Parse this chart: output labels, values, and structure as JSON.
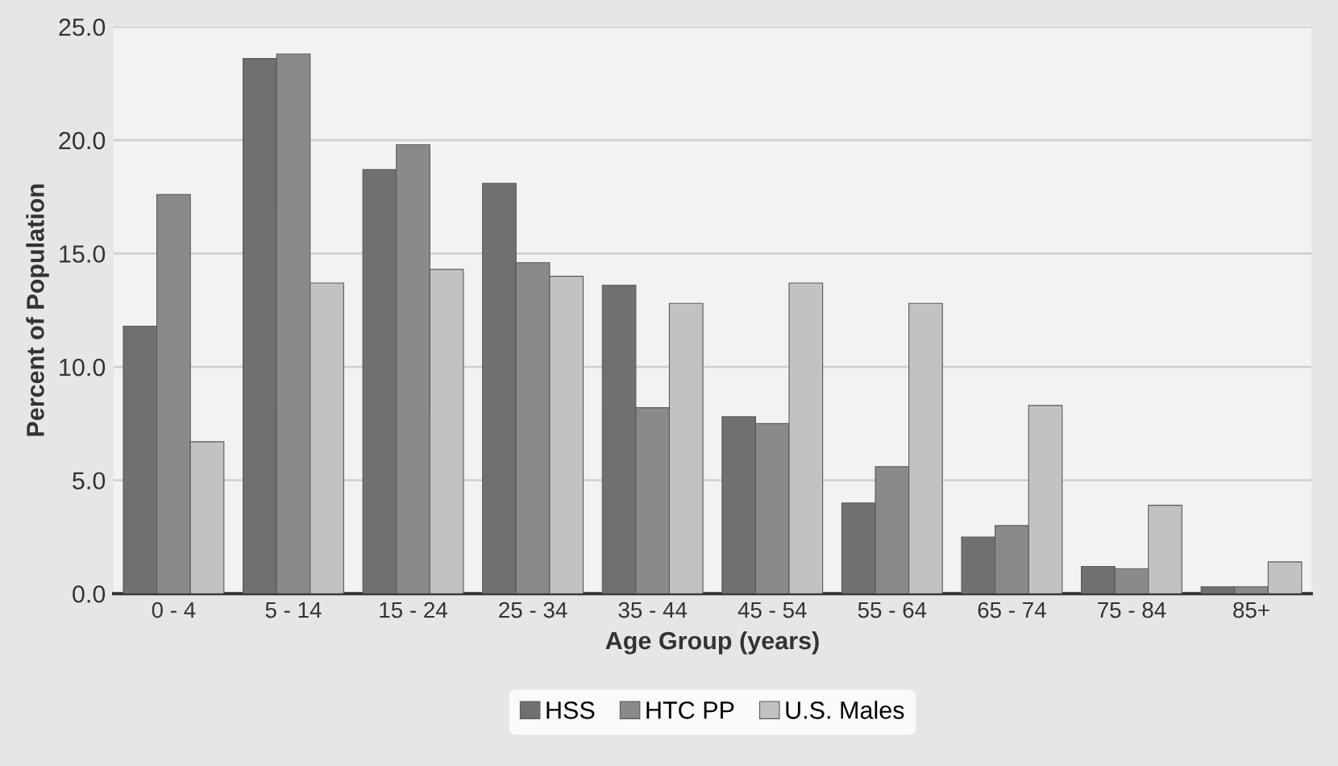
{
  "chart_data": {
    "type": "bar",
    "xlabel": "Age Group (years)",
    "ylabel": "Percent of Population",
    "categories": [
      "0 - 4",
      "5 - 14",
      "15 - 24",
      "25 - 34",
      "35 - 44",
      "45 - 54",
      "55 - 64",
      "65 - 74",
      "75 - 84",
      "85+"
    ],
    "series": [
      {
        "name": "HSS",
        "color": "#707070",
        "values": [
          11.8,
          23.6,
          18.7,
          18.1,
          13.6,
          7.8,
          4.0,
          2.5,
          1.2,
          0.3
        ]
      },
      {
        "name": "HTC PP",
        "color": "#8a8a8a",
        "values": [
          17.6,
          23.8,
          19.8,
          14.6,
          8.2,
          7.5,
          5.6,
          3.0,
          1.1,
          0.3
        ]
      },
      {
        "name": "U.S. Males",
        "color": "#c2c2c2",
        "values": [
          6.7,
          13.7,
          14.3,
          14.0,
          12.8,
          13.7,
          12.8,
          8.3,
          3.9,
          1.4
        ]
      }
    ],
    "ylim": [
      0,
      25
    ],
    "yticks": [
      {
        "value": 0,
        "label": "0.0"
      },
      {
        "value": 5,
        "label": "5.0"
      },
      {
        "value": 10,
        "label": "10.0"
      },
      {
        "value": 15,
        "label": "15.0"
      },
      {
        "value": 20,
        "label": "20.0"
      },
      {
        "value": 25,
        "label": "25.0"
      }
    ],
    "grid": "y",
    "legend": "bottom"
  }
}
